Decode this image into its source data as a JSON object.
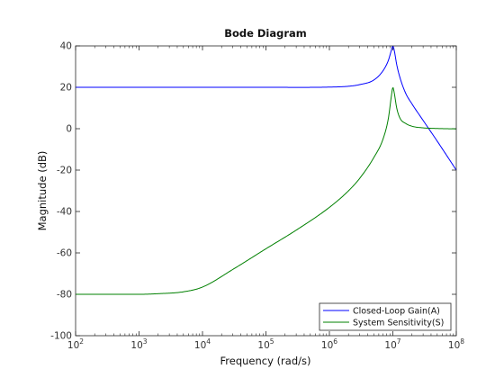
{
  "chart_data": {
    "type": "line",
    "title": "Bode Diagram",
    "xlabel": "Frequency  (rad/s)",
    "ylabel": "Magnitude (dB)",
    "xscale": "log",
    "xlim": [
      100,
      100000000
    ],
    "ylim": [
      -100,
      40
    ],
    "x_ticks": [
      {
        "base": "10",
        "exp": "2",
        "value": 100
      },
      {
        "base": "10",
        "exp": "3",
        "value": 1000
      },
      {
        "base": "10",
        "exp": "4",
        "value": 10000
      },
      {
        "base": "10",
        "exp": "5",
        "value": 100000
      },
      {
        "base": "10",
        "exp": "6",
        "value": 1000000
      },
      {
        "base": "10",
        "exp": "7",
        "value": 10000000
      },
      {
        "base": "10",
        "exp": "8",
        "value": 100000000
      }
    ],
    "y_ticks": [
      "40",
      "20",
      "0",
      "-20",
      "-40",
      "-60",
      "-80",
      "-100"
    ],
    "y_tick_values": [
      40,
      20,
      0,
      -20,
      -40,
      -60,
      -80,
      -100
    ],
    "grid": false,
    "legend_position": "bottom-right",
    "series": [
      {
        "name": "Closed-Loop Gain(A)",
        "color": "#0000ff",
        "x": [
          100,
          1000,
          10000,
          100000,
          1000000,
          2000000,
          3000000,
          5000000,
          7000000,
          8500000,
          9500000,
          10000000,
          10500000,
          11500000,
          13000000,
          16000000,
          20000000,
          30000000,
          50000000,
          100000000
        ],
        "y": [
          20,
          20,
          20,
          20,
          20.1,
          20.5,
          21.3,
          23.5,
          28,
          33,
          38,
          40,
          38,
          31,
          24.5,
          17,
          12,
          4,
          -6,
          -20
        ]
      },
      {
        "name": "System Sensitivity(S)",
        "color": "#008000",
        "x": [
          100,
          1000,
          2000,
          5000,
          10000,
          30000,
          100000,
          300000,
          1000000,
          2000000,
          3000000,
          5000000,
          7000000,
          8500000,
          9500000,
          10000000,
          10500000,
          11500000,
          13000000,
          16000000,
          20000000,
          30000000,
          50000000,
          100000000
        ],
        "y": [
          -80,
          -80,
          -79.7,
          -78.8,
          -76.5,
          -68,
          -58,
          -49,
          -38,
          -30,
          -24,
          -14,
          -5,
          5,
          16,
          20,
          17.5,
          10,
          5,
          2.5,
          1.2,
          0.4,
          0.1,
          -0.1
        ]
      }
    ]
  }
}
